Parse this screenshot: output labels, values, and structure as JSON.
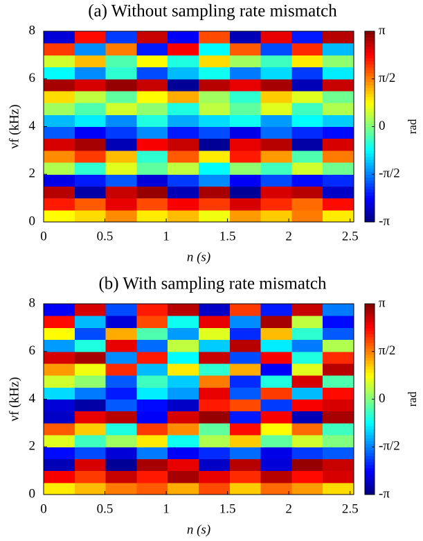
{
  "chart_data": [
    {
      "type": "heatmap",
      "title": "(a) Without sampling rate mismatch",
      "xlabel": "n (s)",
      "ylabel": "νf (kHz)",
      "clabel": "rad",
      "colormap": "jet",
      "xlim": [
        0,
        2.53
      ],
      "xticks": [
        0,
        0.5,
        1,
        1.5,
        2,
        2.5
      ],
      "ylim": [
        0,
        8
      ],
      "yticks": [
        0,
        2,
        4,
        6,
        8
      ],
      "clim": [
        -3.1416,
        3.1416
      ],
      "cticks": [
        {
          "value": -3.1416,
          "label": "-π"
        },
        {
          "value": -1.5708,
          "label": "-π/2"
        },
        {
          "value": 0,
          "label": "0"
        },
        {
          "value": 1.5708,
          "label": "π/2"
        },
        {
          "value": 3.1416,
          "label": "π"
        }
      ],
      "z": [
        [
          0.8,
          1.0,
          1.5,
          0.9,
          1.2,
          0.7,
          1.4,
          1.1,
          1.6,
          0.9
        ],
        [
          2.2,
          1.8,
          2.5,
          1.9,
          2.4,
          2.0,
          2.6,
          2.1,
          1.7,
          2.3
        ],
        [
          2.8,
          -2.9,
          2.7,
          3.0,
          -2.8,
          2.9,
          -3.0,
          2.6,
          2.8,
          -2.7
        ],
        [
          -2.5,
          -2.2,
          -1.8,
          -2.6,
          -2.0,
          -1.5,
          -2.4,
          -1.9,
          -2.3,
          -2.1
        ],
        [
          0.3,
          -0.5,
          0.6,
          -0.2,
          0.4,
          -0.8,
          0.1,
          -0.4,
          0.5,
          -0.1
        ],
        [
          1.5,
          2.0,
          1.2,
          -0.5,
          1.8,
          0.9,
          2.2,
          1.4,
          -0.3,
          1.6
        ],
        [
          2.6,
          2.9,
          -2.8,
          2.4,
          2.7,
          -3.0,
          2.5,
          2.8,
          -2.9,
          2.6
        ],
        [
          -1.8,
          -2.4,
          -2.0,
          -1.5,
          -2.2,
          -1.9,
          -2.5,
          -1.7,
          -2.1,
          -2.3
        ],
        [
          -1.2,
          -0.9,
          -1.5,
          -0.6,
          -1.3,
          -1.0,
          -0.7,
          -1.4,
          -0.8,
          -1.1
        ],
        [
          0.2,
          -0.3,
          0.5,
          0.1,
          -0.6,
          0.4,
          -0.2,
          0.6,
          -0.4,
          0.3
        ],
        [
          1.0,
          0.4,
          -0.2,
          0.8,
          1.3,
          0.2,
          -0.5,
          1.1,
          0.6,
          -0.1
        ],
        [
          2.9,
          2.6,
          3.0,
          2.7,
          -3.0,
          2.8,
          2.5,
          2.9,
          -2.8,
          2.7
        ],
        [
          -0.8,
          -1.5,
          -0.5,
          -1.9,
          -1.2,
          -0.7,
          -1.6,
          -1.0,
          -2.0,
          -0.9
        ],
        [
          0.5,
          1.2,
          -0.3,
          0.8,
          -0.6,
          1.0,
          0.2,
          -0.4,
          0.9,
          0.1
        ],
        [
          2.0,
          -1.5,
          1.6,
          -2.2,
          2.4,
          -0.8,
          1.8,
          -1.9,
          2.1,
          -1.2
        ],
        [
          -2.6,
          2.3,
          -2.0,
          2.7,
          -2.4,
          1.9,
          -2.8,
          2.5,
          -2.2,
          2.8
        ]
      ]
    },
    {
      "type": "heatmap",
      "title": "(b) With sampling rate mismatch",
      "xlabel": "n (s)",
      "ylabel": "νf (kHz)",
      "clabel": "rad",
      "colormap": "jet",
      "xlim": [
        0,
        2.53
      ],
      "xticks": [
        0,
        0.5,
        1,
        1.5,
        2,
        2.5
      ],
      "ylim": [
        0,
        8
      ],
      "yticks": [
        0,
        2,
        4,
        6,
        8
      ],
      "clim": [
        -3.1416,
        3.1416
      ],
      "cticks": [
        {
          "value": -3.1416,
          "label": "-π"
        },
        {
          "value": -1.5708,
          "label": "-π/2"
        },
        {
          "value": 0,
          "label": "0"
        },
        {
          "value": 1.5708,
          "label": "π/2"
        },
        {
          "value": 3.1416,
          "label": "π"
        }
      ],
      "z": [
        [
          0.9,
          1.2,
          1.6,
          1.8,
          1.3,
          1.9,
          1.1,
          1.7,
          1.4,
          1.0
        ],
        [
          2.4,
          2.0,
          2.7,
          2.2,
          2.9,
          2.5,
          2.1,
          2.8,
          2.3,
          2.6
        ],
        [
          -2.8,
          2.6,
          -3.0,
          2.9,
          2.5,
          -2.7,
          2.8,
          -2.6,
          3.0,
          2.7
        ],
        [
          -2.3,
          -1.9,
          -2.6,
          -1.6,
          -2.4,
          -2.1,
          -1.7,
          -2.5,
          -2.0,
          -1.8
        ],
        [
          0.6,
          -0.4,
          0.2,
          0.9,
          -0.7,
          0.3,
          1.1,
          -0.2,
          0.5,
          0.0
        ],
        [
          1.8,
          1.1,
          -0.6,
          2.0,
          1.5,
          -0.2,
          2.3,
          0.8,
          1.7,
          -0.4
        ],
        [
          -2.7,
          2.5,
          2.8,
          -2.4,
          2.6,
          3.0,
          -2.2,
          2.4,
          -2.8,
          2.9
        ],
        [
          -2.6,
          -2.9,
          -1.8,
          -2.3,
          -2.7,
          2.2,
          1.9,
          -2.0,
          2.4,
          2.6
        ],
        [
          -1.0,
          -1.6,
          -2.2,
          -0.9,
          -1.4,
          2.5,
          -1.8,
          2.0,
          -1.2,
          2.3
        ],
        [
          0.5,
          0.1,
          -1.8,
          -0.4,
          -1.1,
          1.6,
          -2.1,
          -0.6,
          2.6,
          -0.3
        ],
        [
          1.4,
          0.7,
          2.1,
          -1.2,
          0.9,
          -0.5,
          1.3,
          -2.4,
          0.6,
          2.8
        ],
        [
          2.6,
          2.9,
          -1.5,
          2.2,
          -0.8,
          2.7,
          -1.9,
          2.4,
          -0.6,
          2.1
        ],
        [
          -1.4,
          -0.6,
          2.5,
          -1.7,
          0.4,
          -1.1,
          2.8,
          -0.9,
          -1.6,
          0.3
        ],
        [
          0.8,
          -1.9,
          1.3,
          -0.3,
          -1.4,
          0.6,
          -2.1,
          1.2,
          -0.5,
          -1.8
        ],
        [
          2.3,
          -1.2,
          -2.6,
          1.9,
          -0.7,
          2.5,
          -1.5,
          2.9,
          0.4,
          -2.3
        ],
        [
          -2.4,
          2.6,
          -1.9,
          2.2,
          2.8,
          -2.7,
          2.0,
          -2.2,
          2.7,
          -1.6
        ]
      ]
    }
  ]
}
